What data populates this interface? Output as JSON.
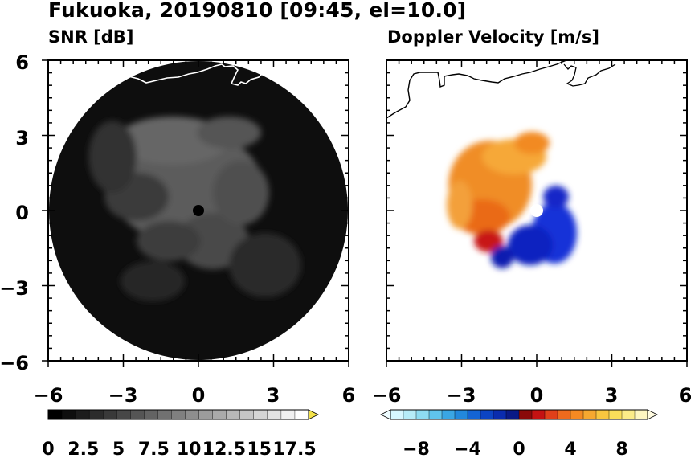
{
  "figure": {
    "title": "Fukuoka, 20190810 [09:45, el=10.0]"
  },
  "chart_data": [
    {
      "type": "heatmap",
      "title": "SNR [dB]",
      "xlabel": "",
      "ylabel": "",
      "xlim": [
        -6,
        6
      ],
      "ylim": [
        -6,
        6
      ],
      "x_ticks": [
        "−6",
        "−3",
        "0",
        "3",
        "6"
      ],
      "y_ticks": [
        "6",
        "3",
        "0",
        "−3",
        "−6"
      ],
      "colorbar": {
        "min": 0,
        "max": 18.5,
        "levels": 19,
        "extend": "max",
        "colormap": "black-to-white grayscale",
        "tick_values": [
          0,
          2.5,
          5,
          7.5,
          10,
          12.5,
          15,
          17.5
        ],
        "tick_labels": [
          "0",
          "2.5",
          "5",
          "7.5",
          "10",
          "12.5",
          "15",
          "17.5"
        ]
      },
      "colors": {
        "background": "#000000",
        "coastline": "#ffffff"
      }
    },
    {
      "type": "heatmap",
      "title": "Doppler Velocity [m/s]",
      "xlabel": "",
      "ylabel": "",
      "xlim": [
        -6,
        6
      ],
      "ylim": [
        -6,
        6
      ],
      "x_ticks": [
        "−6",
        "−3",
        "0",
        "3",
        "6"
      ],
      "y_ticks": [],
      "colorbar": {
        "min": -10,
        "max": 10,
        "levels": 20,
        "extend": "both",
        "colormap": "diverging: light cyan - blue - navy | dark red - orange - yellow - light yellow",
        "tick_values": [
          -8,
          -4,
          0,
          4,
          8
        ],
        "tick_labels": [
          "−8",
          "−4",
          "0",
          "4",
          "8"
        ]
      },
      "colors": {
        "negative": "#1020d0",
        "positive": "#f08820",
        "coastline": "#000000"
      }
    }
  ]
}
